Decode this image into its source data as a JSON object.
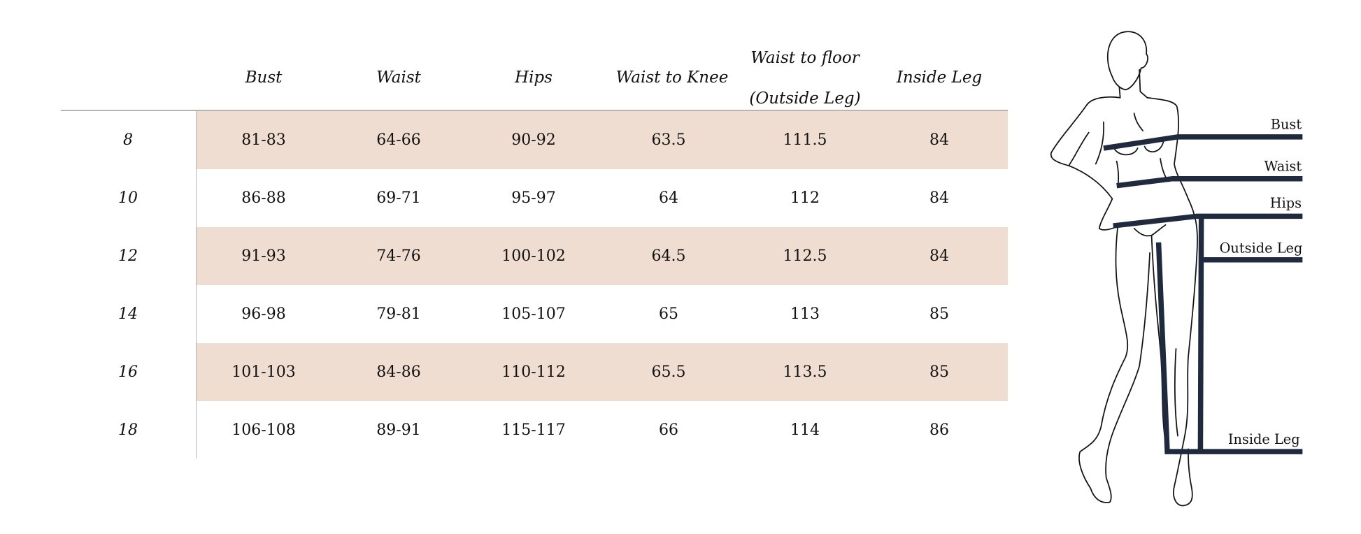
{
  "table": {
    "headers": [
      "Bust",
      "Waist",
      "Hips",
      "Waist to Knee",
      "Waist to floor",
      "(Outside Leg)",
      "Inside Leg"
    ],
    "rows": [
      {
        "size": "8",
        "values": [
          "81-83",
          "64-66",
          "90-92",
          "63.5",
          "111.5",
          "84"
        ],
        "shaded": true
      },
      {
        "size": "10",
        "values": [
          "86-88",
          "69-71",
          "95-97",
          "64",
          "112",
          "84"
        ],
        "shaded": false
      },
      {
        "size": "12",
        "values": [
          "91-93",
          "74-76",
          "100-102",
          "64.5",
          "112.5",
          "84"
        ],
        "shaded": true
      },
      {
        "size": "14",
        "values": [
          "96-98",
          "79-81",
          "105-107",
          "65",
          "113",
          "85"
        ],
        "shaded": false
      },
      {
        "size": "16",
        "values": [
          "101-103",
          "84-86",
          "110-112",
          "65.5",
          "113.5",
          "85"
        ],
        "shaded": true
      },
      {
        "size": "18",
        "values": [
          "106-108",
          "89-91",
          "115-117",
          "66",
          "114",
          "86"
        ],
        "shaded": false
      }
    ],
    "shade_color": "#f0ddd1"
  },
  "figure": {
    "labels": {
      "bust": "Bust",
      "waist": "Waist",
      "hips": "Hips",
      "outside_leg": "Outside Leg",
      "inside_leg": "Inside Leg"
    },
    "line_color": "#1f2a3f"
  }
}
